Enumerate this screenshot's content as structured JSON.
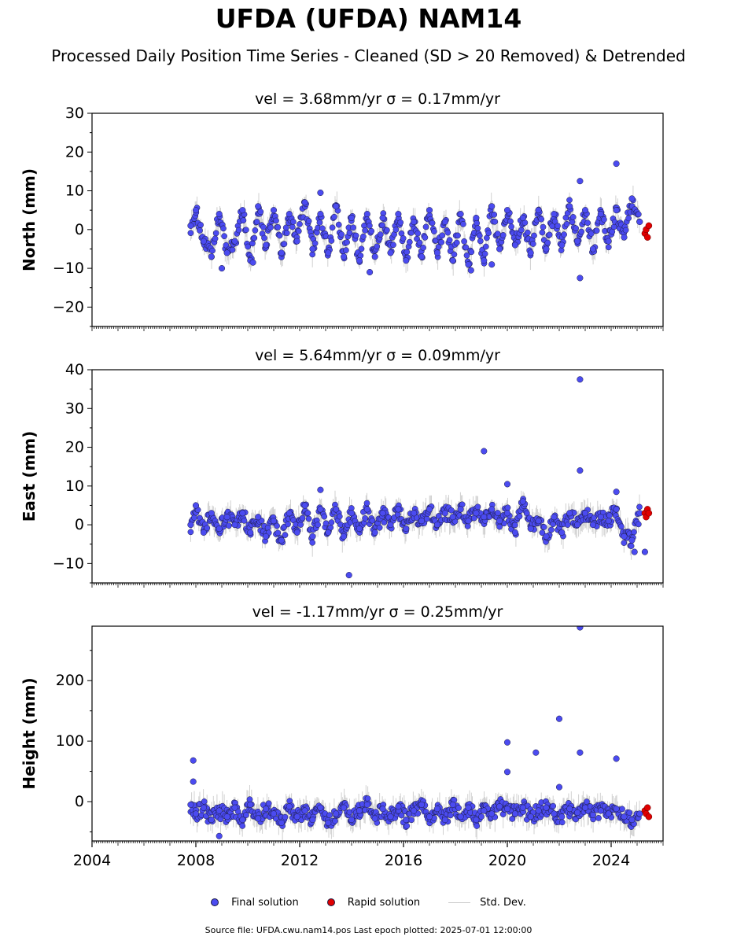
{
  "header": {
    "title": "UFDA (UFDA) NAM14",
    "subtitle": "Processed Daily Position Time Series - Cleaned (SD > 20 Removed) & Detrended"
  },
  "legend": {
    "final": "Final solution",
    "rapid": "Rapid solution",
    "std": "Std. Dev."
  },
  "footer": "Source file: UFDA.cwu.nam14.pos  Last epoch plotted: 2025-07-01 12:00:00",
  "colors": {
    "final": "#4b4bf0",
    "rapid": "#e00000",
    "std_dev": "#bdbdbd",
    "marker_edge": "#1a1a40"
  },
  "chart_data": [
    {
      "type": "scatter",
      "title": "vel = 3.68mm/yr   σ = 0.17mm/yr",
      "ylabel": "North (mm)",
      "xlabel": "",
      "xlim": [
        2004.0,
        2026.0
      ],
      "ylim": [
        -25,
        30
      ],
      "xticks": [],
      "yticks": [
        -20,
        -10,
        0,
        10,
        20,
        30
      ],
      "ytick_labels": [
        "−20",
        "−10",
        "0",
        "10",
        "20",
        "30"
      ],
      "series": [
        {
          "name": "Final solution",
          "x": [
            2007.8,
            2008.0,
            2008.3,
            2008.6,
            2008.9,
            2009.2,
            2009.5,
            2009.8,
            2010.1,
            2010.4,
            2010.7,
            2011.0,
            2011.3,
            2011.6,
            2011.9,
            2012.2,
            2012.5,
            2012.8,
            2013.1,
            2013.4,
            2013.7,
            2014.0,
            2014.3,
            2014.6,
            2014.9,
            2015.2,
            2015.5,
            2015.8,
            2016.1,
            2016.4,
            2016.7,
            2017.0,
            2017.3,
            2017.6,
            2017.9,
            2018.2,
            2018.5,
            2018.8,
            2019.1,
            2019.4,
            2019.7,
            2020.0,
            2020.3,
            2020.6,
            2020.9,
            2021.2,
            2021.5,
            2021.8,
            2022.1,
            2022.4,
            2022.7,
            2023.0,
            2023.3,
            2023.6,
            2023.9,
            2024.2,
            2024.5,
            2024.8,
            2025.1
          ],
          "y": [
            1,
            5,
            -3,
            -7,
            4,
            -6,
            -3,
            5,
            -8,
            6,
            -4,
            5,
            -6,
            4,
            -3,
            7,
            -5,
            4,
            -6,
            6,
            -7,
            3,
            -8,
            4,
            -7,
            3,
            -6,
            4,
            -8,
            2,
            -7,
            5,
            -6,
            2,
            -8,
            4,
            -9,
            3,
            -8,
            6,
            -5,
            5,
            -4,
            3,
            -6,
            5,
            -5,
            4,
            -4,
            6,
            -3,
            5,
            -5,
            4,
            -3,
            5,
            -2,
            8,
            2
          ]
        },
        {
          "name": "Rapid solution",
          "x": [
            2025.3,
            2025.35,
            2025.4,
            2025.45
          ],
          "y": [
            -1,
            0,
            -2,
            1
          ]
        }
      ],
      "outliers": {
        "x": [
          2012.8,
          2022.8,
          2022.8,
          2024.2,
          2009.0,
          2010.2,
          2014.7,
          2018.6,
          2019.4
        ],
        "y": [
          9.5,
          12.5,
          -12.5,
          17,
          -10,
          -8.5,
          -11,
          -10.5,
          -9
        ]
      }
    },
    {
      "type": "scatter",
      "title": "vel = 5.64mm/yr   σ = 0.09mm/yr",
      "ylabel": "East (mm)",
      "xlabel": "",
      "xlim": [
        2004.0,
        2026.0
      ],
      "ylim": [
        -15,
        40
      ],
      "xticks": [],
      "yticks": [
        -10,
        0,
        10,
        20,
        30,
        40
      ],
      "ytick_labels": [
        "−10",
        "0",
        "10",
        "20",
        "30",
        "40"
      ],
      "series": [
        {
          "name": "Final solution",
          "x": [
            2007.8,
            2008.0,
            2008.3,
            2008.6,
            2008.9,
            2009.2,
            2009.5,
            2009.8,
            2010.1,
            2010.4,
            2010.7,
            2011.0,
            2011.3,
            2011.6,
            2011.9,
            2012.2,
            2012.5,
            2012.8,
            2013.1,
            2013.4,
            2013.7,
            2014.0,
            2014.3,
            2014.6,
            2014.9,
            2015.2,
            2015.5,
            2015.8,
            2016.1,
            2016.4,
            2016.7,
            2017.0,
            2017.3,
            2017.6,
            2017.9,
            2018.2,
            2018.5,
            2018.8,
            2019.1,
            2019.4,
            2019.7,
            2020.0,
            2020.3,
            2020.6,
            2020.9,
            2021.2,
            2021.5,
            2021.8,
            2022.1,
            2022.4,
            2022.7,
            2023.0,
            2023.3,
            2023.6,
            2023.9,
            2024.2,
            2024.5,
            2024.8,
            2025.1
          ],
          "y": [
            0,
            5,
            -2,
            3,
            -1,
            2,
            0,
            3,
            -2,
            2,
            -3,
            1,
            -4,
            3,
            -2,
            5,
            -3,
            4,
            -2,
            4,
            -3,
            3,
            -1,
            4,
            -2,
            3,
            0,
            4,
            -1,
            3,
            1,
            4,
            0,
            3,
            2,
            4,
            1,
            3,
            2,
            4,
            1,
            3,
            -2,
            6,
            -1,
            1,
            -3,
            2,
            -2,
            3,
            0,
            3,
            0,
            2,
            1,
            4,
            -3,
            -4,
            3
          ]
        },
        {
          "name": "Rapid solution",
          "x": [
            2025.3,
            2025.35,
            2025.4,
            2025.45
          ],
          "y": [
            3,
            2,
            4,
            3
          ]
        }
      ],
      "outliers": {
        "x": [
          2022.8,
          2019.1,
          2022.8,
          2024.2,
          2020.0,
          2013.9,
          2024.9,
          2025.3,
          2012.8
        ],
        "y": [
          37.5,
          19,
          14,
          8.5,
          10.5,
          -13,
          -7,
          -7,
          9
        ]
      }
    },
    {
      "type": "scatter",
      "title": "vel = -1.17mm/yr   σ = 0.25mm/yr",
      "ylabel": "Height (mm)",
      "xlabel": "",
      "xlim": [
        2004.0,
        2026.0
      ],
      "ylim": [
        -65,
        290
      ],
      "xticks": [
        2004,
        2008,
        2012,
        2016,
        2020,
        2024
      ],
      "xtick_labels": [
        "2004",
        "2008",
        "2012",
        "2016",
        "2020",
        "2024"
      ],
      "yticks": [
        0,
        100,
        200
      ],
      "ytick_labels": [
        "0",
        "100",
        "200"
      ],
      "series": [
        {
          "name": "Final solution",
          "x": [
            2007.8,
            2008.0,
            2008.3,
            2008.6,
            2008.9,
            2009.2,
            2009.5,
            2009.8,
            2010.1,
            2010.4,
            2010.7,
            2011.0,
            2011.3,
            2011.6,
            2011.9,
            2012.2,
            2012.5,
            2012.8,
            2013.1,
            2013.4,
            2013.7,
            2014.0,
            2014.3,
            2014.6,
            2014.9,
            2015.2,
            2015.5,
            2015.8,
            2016.1,
            2016.4,
            2016.7,
            2017.0,
            2017.3,
            2017.6,
            2017.9,
            2018.2,
            2018.5,
            2018.8,
            2019.1,
            2019.4,
            2019.7,
            2020.0,
            2020.3,
            2020.6,
            2020.9,
            2021.2,
            2021.5,
            2021.8,
            2022.1,
            2022.4,
            2022.7,
            2023.0,
            2023.3,
            2023.6,
            2023.9,
            2024.2,
            2024.5,
            2024.8,
            2025.1
          ],
          "y": [
            -5,
            -20,
            -10,
            -30,
            -15,
            -25,
            -10,
            -30,
            -5,
            -28,
            -12,
            -20,
            -35,
            -8,
            -25,
            -15,
            -30,
            -10,
            -35,
            -20,
            -10,
            -30,
            -15,
            -5,
            -28,
            -12,
            -25,
            -8,
            -30,
            -15,
            -5,
            -25,
            -12,
            -30,
            -5,
            -25,
            -10,
            -30,
            -15,
            -20,
            -8,
            -12,
            -20,
            -10,
            -25,
            -15,
            -10,
            -20,
            -25,
            -12,
            -18,
            -10,
            -22,
            -15,
            -20,
            -12,
            -25,
            -30,
            -20
          ]
        },
        {
          "name": "Rapid solution",
          "x": [
            2025.3,
            2025.35,
            2025.4,
            2025.45
          ],
          "y": [
            -15,
            -20,
            -10,
            -25
          ]
        }
      ],
      "outliers": {
        "x": [
          2022.8,
          2022.0,
          2020.0,
          2021.1,
          2022.8,
          2024.2,
          2020.0,
          2007.9,
          2007.9,
          2008.9,
          2022.0
        ],
        "y": [
          288,
          137,
          98,
          81,
          81,
          71,
          49,
          68,
          33,
          -57,
          24
        ]
      }
    }
  ]
}
